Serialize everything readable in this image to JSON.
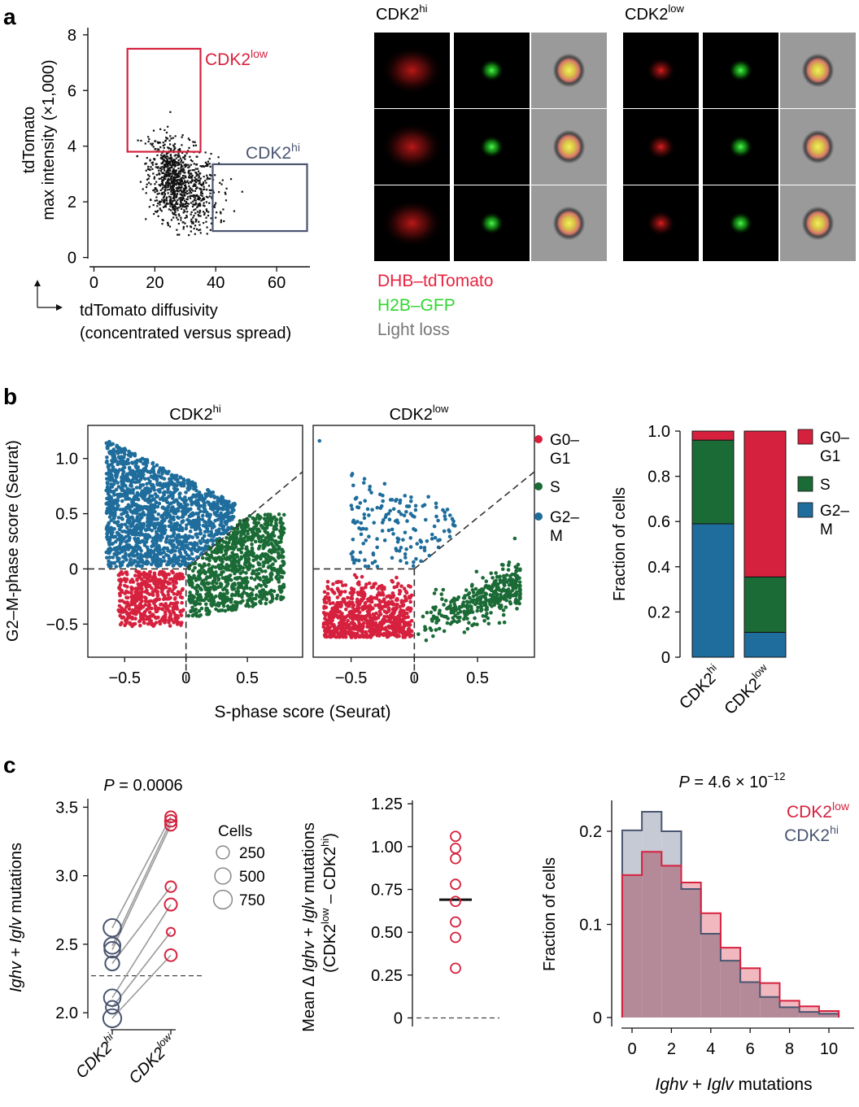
{
  "colors": {
    "low": "#d6213e",
    "hi_box": "#4a5570",
    "g01": "#d6213e",
    "s": "#1b6b36",
    "g2m": "#1f6d9c",
    "gfp": "#2fd62f",
    "lightloss": "#777777",
    "hist_low_fill": "#f2b8c0",
    "hist_hi_fill": "#c5cad4",
    "hist_overlap": "#b58a98"
  },
  "panel_labels": {
    "a": "a",
    "b": "b",
    "c": "c"
  },
  "panel_a": {
    "ylabel_line1": "tdTomato",
    "ylabel_line2": "max intensity (×1,000)",
    "xlabel_line1": "tdTomato diffusivity",
    "xlabel_line2": "(concentrated versus spread)",
    "gate_low": {
      "base": "CDK2",
      "sup": "low"
    },
    "gate_hi": {
      "base": "CDK2",
      "sup": "hi"
    },
    "image_group_hi": {
      "base": "CDK2",
      "sup": "hi"
    },
    "image_group_low": {
      "base": "CDK2",
      "sup": "low"
    },
    "channel_legend": [
      "DHB–tdTomato",
      "H2B–GFP",
      "Light loss"
    ],
    "icons": [
      "axis-arrows-icon"
    ]
  },
  "panel_b": {
    "scatter_hi_title": {
      "base": "CDK2",
      "sup": "hi"
    },
    "scatter_low_title": {
      "base": "CDK2",
      "sup": "low"
    },
    "ylabel": "G2–M-phase score (Seurat)",
    "xlabel": "S-phase score (Seurat)",
    "legend": [
      {
        "line1": "G0–",
        "line2": "G1"
      },
      {
        "line1": "S",
        "line2": ""
      },
      {
        "line1": "G2–",
        "line2": "M"
      }
    ],
    "bar_ylabel": "Fraction of cells",
    "bar_legend": [
      {
        "line1": "G0–",
        "line2": "G1"
      },
      {
        "line1": "S",
        "line2": ""
      },
      {
        "line1": "G2–",
        "line2": "M"
      }
    ],
    "bar_xticks": [
      {
        "base": "CDK2",
        "sup": "hi"
      },
      {
        "base": "CDK2",
        "sup": "low"
      }
    ]
  },
  "panel_c": {
    "p1": {
      "italic": "P",
      "rest": " = 0.0006"
    },
    "p3": {
      "italic": "P",
      "rest": " = 4.6 × 10",
      "sup": "−12"
    },
    "ylabel1": {
      "i1": "Ighv",
      "mid": " + ",
      "i2": "Iglv",
      "rest": " mutations"
    },
    "cells_legend_title": "Cells",
    "cells_legend": [
      "250",
      "500",
      "750"
    ],
    "xticks1": [
      {
        "base": "CDK2",
        "sup": "hi"
      },
      {
        "base": "CDK2",
        "sup": "low"
      }
    ],
    "ylabel2_line1": {
      "pre": "Mean Δ ",
      "i1": "Ighv",
      "mid": " + ",
      "i2": "Iglv",
      "rest": " mutations"
    },
    "ylabel2_line2": {
      "a": "(CDK2",
      "asup": "low",
      "b": " – CDK2",
      "bsup": "hi",
      "c": ")"
    },
    "hist_legend": [
      {
        "base": "CDK2",
        "sup": "low"
      },
      {
        "base": "CDK2",
        "sup": "hi"
      }
    ],
    "hist_ylabel": "Fraction of cells",
    "hist_xlabel": {
      "i1": "Ighv",
      "mid": " + ",
      "i2": "Iglv",
      "rest": " mutations"
    }
  },
  "chart_data": [
    {
      "id": "a-scatter",
      "type": "scatter",
      "title": "",
      "xlabel": "tdTomato diffusivity (concentrated versus spread)",
      "ylabel": "tdTomato max intensity (×1,000)",
      "xlim": [
        -2,
        72
      ],
      "ylim": [
        -0.1,
        8.2
      ],
      "xticks": [
        0,
        20,
        40,
        60
      ],
      "yticks": [
        0,
        2,
        4,
        6,
        8
      ],
      "xticklabels": [
        "0",
        "20",
        "40",
        "60"
      ],
      "yticklabels": [
        "0",
        "2",
        "4",
        "6",
        "8"
      ],
      "cloud": {
        "n": 1000,
        "x_mean": 27,
        "x_sd": 5.5,
        "y_mean": 2.65,
        "y_sd": 0.8,
        "corr": -0.35
      },
      "gates": [
        {
          "name": "CDK2low",
          "x": [
            11,
            35
          ],
          "y": [
            3.8,
            7.5
          ]
        },
        {
          "name": "CDK2hi",
          "x": [
            39,
            70
          ],
          "y": [
            0.95,
            3.35
          ]
        }
      ]
    },
    {
      "id": "b-scatter-hi",
      "type": "scatter",
      "title": "CDK2hi",
      "xlabel": "S-phase score (Seurat)",
      "ylabel": "G2–M-phase score (Seurat)",
      "xlim": [
        -0.8,
        0.95
      ],
      "ylim": [
        -0.8,
        1.3
      ],
      "xticks": [
        -0.5,
        0,
        0.5
      ],
      "yticks": [
        -0.5,
        0,
        0.5,
        1.0
      ],
      "xticklabels": [
        "−0.5",
        "0",
        "0.5"
      ],
      "yticklabels": [
        "−0.5",
        "0",
        "0.5",
        "1.0"
      ],
      "groups": [
        {
          "phase": "G2–M",
          "n": 1600
        },
        {
          "phase": "S",
          "n": 900
        },
        {
          "phase": "G0–G1",
          "n": 450
        }
      ]
    },
    {
      "id": "b-scatter-low",
      "type": "scatter",
      "title": "CDK2low",
      "xlabel": "S-phase score (Seurat)",
      "ylabel": "G2–M-phase score (Seurat)",
      "xlim": [
        -0.8,
        0.95
      ],
      "ylim": [
        -0.8,
        1.3
      ],
      "xticks": [
        -0.5,
        0,
        0.5
      ],
      "xticklabels": [
        "−0.5",
        "0",
        "0.5"
      ],
      "groups": [
        {
          "phase": "G2–M",
          "n": 160
        },
        {
          "phase": "S",
          "n": 380
        },
        {
          "phase": "G0–G1",
          "n": 800
        }
      ]
    },
    {
      "id": "b-stacked-bar",
      "type": "bar",
      "stacked": true,
      "ylabel": "Fraction of cells",
      "categories": [
        "CDK2hi",
        "CDK2low"
      ],
      "series": [
        {
          "name": "G2–M",
          "values": [
            0.59,
            0.11
          ]
        },
        {
          "name": "S",
          "values": [
            0.37,
            0.245
          ]
        },
        {
          "name": "G0–G1",
          "values": [
            0.04,
            0.645
          ]
        }
      ],
      "ylim": [
        0,
        1.0
      ],
      "yticks": [
        0,
        0.2,
        0.4,
        0.6,
        0.8,
        1.0
      ],
      "yticklabels": [
        "0",
        "0.2",
        "0.4",
        "0.6",
        "0.8",
        "1.0"
      ]
    },
    {
      "id": "c-paired",
      "type": "scatter",
      "ylabel": "Ighv + Iglv mutations",
      "categories": [
        "CDK2hi",
        "CDK2low"
      ],
      "ylim": [
        1.9,
        3.55
      ],
      "yticks": [
        2.0,
        2.5,
        3.0,
        3.5
      ],
      "yticklabels": [
        "2.0",
        "2.5",
        "3.0",
        "3.5"
      ],
      "reference_line": 2.27,
      "pairs": [
        {
          "hi": 2.62,
          "low": 3.43,
          "hi_cells": 640,
          "low_cells": 150
        },
        {
          "hi": 2.49,
          "low": 3.4,
          "hi_cells": 520,
          "low_cells": 180
        },
        {
          "hi": 2.46,
          "low": 3.37,
          "hi_cells": 470,
          "low_cells": 160
        },
        {
          "hi": 2.36,
          "low": 2.92,
          "hi_cells": 330,
          "low_cells": 130
        },
        {
          "hi": 2.11,
          "low": 2.79,
          "hi_cells": 560,
          "low_cells": 210
        },
        {
          "hi": 2.04,
          "low": 2.59,
          "hi_cells": 250,
          "low_cells": 40
        },
        {
          "hi": 1.96,
          "low": 2.42,
          "hi_cells": 700,
          "low_cells": 190
        }
      ],
      "size_legend": [
        250,
        500,
        750
      ]
    },
    {
      "id": "c-delta",
      "type": "scatter",
      "ylabel": "Mean Δ Ighv + Iglv mutations (CDK2low – CDK2hi)",
      "values": [
        1.06,
        0.99,
        0.93,
        0.78,
        0.68,
        0.56,
        0.47,
        0.29
      ],
      "mean": 0.69,
      "ylim": [
        -0.05,
        1.27
      ],
      "yticks": [
        0,
        0.25,
        0.5,
        0.75,
        1.0,
        1.25
      ],
      "yticklabels": [
        "0",
        "0.25",
        "0.50",
        "0.75",
        "1.00",
        "1.25"
      ],
      "reference_line": 0
    },
    {
      "id": "c-hist",
      "type": "area",
      "subtype": "step-histogram",
      "xlabel": "Ighv + Iglv mutations",
      "ylabel": "Fraction of cells",
      "x": [
        0,
        1,
        2,
        3,
        4,
        5,
        6,
        7,
        8,
        9,
        10
      ],
      "series": [
        {
          "name": "CDK2low",
          "values": [
            0.153,
            0.178,
            0.163,
            0.145,
            0.112,
            0.075,
            0.053,
            0.037,
            0.018,
            0.012,
            0.007
          ]
        },
        {
          "name": "CDK2hi",
          "values": [
            0.201,
            0.221,
            0.2,
            0.138,
            0.09,
            0.061,
            0.038,
            0.022,
            0.011,
            0.006,
            0.004
          ]
        }
      ],
      "xlim": [
        -0.7,
        10.9
      ],
      "ylim": [
        -0.005,
        0.236
      ],
      "xticks": [
        0,
        2,
        4,
        6,
        8,
        10
      ],
      "xticklabels": [
        "0",
        "2",
        "4",
        "6",
        "8",
        "10"
      ],
      "yticks": [
        0,
        0.1,
        0.2
      ],
      "yticklabels": [
        "0",
        "0.1",
        "0.2"
      ]
    }
  ]
}
